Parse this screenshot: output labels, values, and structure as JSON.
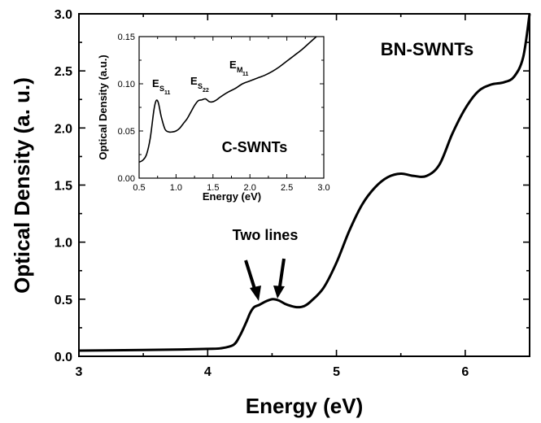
{
  "chart_data": [
    {
      "type": "line",
      "title": "",
      "xlabel": "Energy (eV)",
      "ylabel": "Optical Density (a. u.)",
      "xlim": [
        3.0,
        6.5
      ],
      "ylim": [
        0.0,
        3.0
      ],
      "xticks": [
        "3",
        "4",
        "5",
        "6"
      ],
      "yticks": [
        "0.0",
        "0.5",
        "1.0",
        "1.5",
        "2.0",
        "2.5",
        "3.0"
      ],
      "annotations": [
        "BN-SWNTs",
        "Two lines"
      ],
      "series": [
        {
          "x": [
            3.0,
            3.5,
            3.8,
            4.0,
            4.1,
            4.2,
            4.25,
            4.3,
            4.33,
            4.36,
            4.4,
            4.45,
            4.5,
            4.55,
            4.6,
            4.65,
            4.7,
            4.75,
            4.8,
            4.9,
            5.0,
            5.1,
            5.2,
            5.3,
            5.4,
            5.5,
            5.6,
            5.7,
            5.8,
            5.9,
            6.0,
            6.1,
            6.2,
            6.3,
            6.38,
            6.45,
            6.5
          ],
          "y": [
            0.05,
            0.055,
            0.06,
            0.065,
            0.07,
            0.1,
            0.18,
            0.3,
            0.38,
            0.43,
            0.45,
            0.48,
            0.5,
            0.49,
            0.46,
            0.44,
            0.43,
            0.44,
            0.48,
            0.6,
            0.82,
            1.1,
            1.33,
            1.48,
            1.57,
            1.6,
            1.58,
            1.58,
            1.68,
            1.95,
            2.17,
            2.32,
            2.38,
            2.4,
            2.45,
            2.62,
            3.0
          ]
        }
      ]
    },
    {
      "type": "line",
      "title": "",
      "xlabel": "Energy (eV)",
      "ylabel": "Optical Density (a.u.)",
      "xlim": [
        0.5,
        3.0
      ],
      "ylim": [
        0.0,
        0.15
      ],
      "xticks": [
        "0.5",
        "1.0",
        "1.5",
        "2.0",
        "2.5",
        "3.0"
      ],
      "yticks": [
        "0.00",
        "0.05",
        "0.10",
        "0.15"
      ],
      "annotations": [
        "C-SWNTs"
      ],
      "peak_labels": [
        {
          "main": "E",
          "sub": "S",
          "subsub": "11"
        },
        {
          "main": "E",
          "sub": "S",
          "subsub": "22"
        },
        {
          "main": "E",
          "sub": "M",
          "subsub": "11"
        }
      ],
      "series": [
        {
          "x": [
            0.5,
            0.55,
            0.6,
            0.65,
            0.7,
            0.73,
            0.76,
            0.8,
            0.85,
            0.9,
            0.95,
            1.0,
            1.05,
            1.1,
            1.15,
            1.2,
            1.25,
            1.3,
            1.35,
            1.4,
            1.45,
            1.5,
            1.55,
            1.6,
            1.7,
            1.8,
            1.9,
            2.0,
            2.1,
            2.2,
            2.3,
            2.4,
            2.5,
            2.6,
            2.7,
            2.8,
            2.9
          ],
          "y": [
            0.017,
            0.019,
            0.025,
            0.042,
            0.072,
            0.082,
            0.08,
            0.065,
            0.052,
            0.049,
            0.049,
            0.05,
            0.053,
            0.058,
            0.063,
            0.07,
            0.077,
            0.082,
            0.083,
            0.084,
            0.081,
            0.081,
            0.083,
            0.086,
            0.091,
            0.095,
            0.1,
            0.103,
            0.106,
            0.109,
            0.113,
            0.118,
            0.124,
            0.13,
            0.136,
            0.143,
            0.15
          ]
        }
      ]
    }
  ]
}
